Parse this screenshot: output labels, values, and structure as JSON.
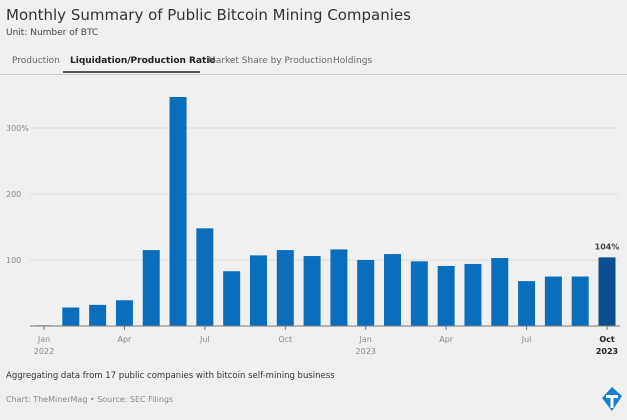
{
  "header": {
    "title": "Monthly Summary of Public Bitcoin Mining Companies",
    "subtitle": "Unit: Number of BTC"
  },
  "tabs": [
    {
      "label": "Production"
    },
    {
      "label": "Liquidation/Production Ratio",
      "active": true
    },
    {
      "label": "Market Share by Production"
    },
    {
      "label": "Holdings"
    }
  ],
  "footer": {
    "note": "Aggregating data from 17 public companies with bitcoin self-mining business",
    "credit": "Chart: TheMinerMag • Source: SEC Filings"
  },
  "colors": {
    "bar": "#0a6ebd",
    "highlight": "#0b4f8f"
  },
  "chart_data": {
    "type": "bar",
    "title": "Liquidation/Production Ratio",
    "categories": [
      "Jan 2022",
      "Feb 2022",
      "Mar 2022",
      "Apr 2022",
      "May 2022",
      "Jun 2022",
      "Jul 2022",
      "Aug 2022",
      "Sep 2022",
      "Oct 2022",
      "Nov 2022",
      "Dec 2022",
      "Jan 2023",
      "Feb 2023",
      "Mar 2023",
      "Apr 2023",
      "May 2023",
      "Jun 2023",
      "Jul 2023",
      "Aug 2023",
      "Sep 2023",
      "Oct 2023"
    ],
    "values": [
      1,
      28,
      32,
      39,
      115,
      347,
      148,
      83,
      107,
      115,
      106,
      116,
      100,
      109,
      98,
      91,
      94,
      103,
      68,
      75,
      75,
      104
    ],
    "ylim": [
      0,
      360
    ],
    "yticks": [
      {
        "v": 100,
        "label": "100"
      },
      {
        "v": 200,
        "label": "200"
      },
      {
        "v": 300,
        "label": "300%"
      }
    ],
    "xticks": [
      {
        "i": 0,
        "label": "Jan",
        "sub": "2022"
      },
      {
        "i": 3,
        "label": "Apr"
      },
      {
        "i": 6,
        "label": "Jul"
      },
      {
        "i": 9,
        "label": "Oct"
      },
      {
        "i": 12,
        "label": "Jan",
        "sub": "2023"
      },
      {
        "i": 15,
        "label": "Apr"
      },
      {
        "i": 18,
        "label": "Jul"
      },
      {
        "i": 21,
        "label": "Oct",
        "sub": "2023",
        "bold": true
      }
    ],
    "annotation": {
      "index": 21,
      "label": "104%"
    },
    "grid": true
  }
}
